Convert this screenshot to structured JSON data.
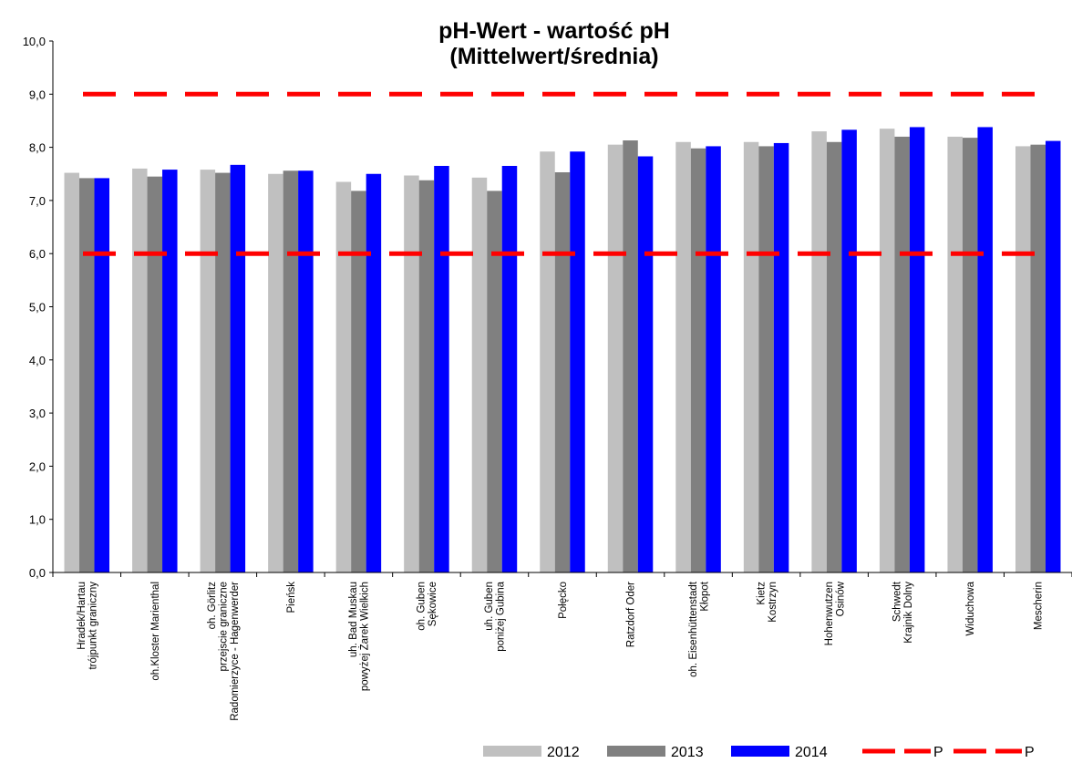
{
  "chart_data": {
    "type": "bar",
    "title_lines": [
      "pH-Wert - wartość pH",
      "(Mittelwert/średnia)"
    ],
    "xlabel": "",
    "ylabel": "",
    "ylim": [
      0,
      10
    ],
    "y_ticks": [
      "0,0",
      "1,0",
      "2,0",
      "3,0",
      "4,0",
      "5,0",
      "6,0",
      "7,0",
      "8,0",
      "9,0",
      "10,0"
    ],
    "grid": false,
    "legend_position": "bottom-right",
    "categories": [
      [
        "Hradek/Hartau",
        "trójpunkt graniczny"
      ],
      [
        "oh.Kloster Marienthal"
      ],
      [
        "oh. Görlitz",
        "przejscie graniczne",
        "Radomierzyce - Hagenwerder"
      ],
      [
        "Pieńsk"
      ],
      [
        "uh. Bad Muskau",
        "powyżej Żarek Wielkich"
      ],
      [
        "oh. Guben",
        "Sękowice"
      ],
      [
        "uh. Guben",
        "poniżej Gubina"
      ],
      [
        "Połęcko"
      ],
      [
        "Ratzdorf Oder"
      ],
      [
        "oh. Eisenhüttenstadt",
        "Kłopot"
      ],
      [
        "Kietz",
        "Kostrzyn"
      ],
      [
        "Hohenwutzen",
        "Osinów"
      ],
      [
        "Schwedt",
        "Krajnik Dolny"
      ],
      [
        "Widuchowa"
      ],
      [
        "Mescherin"
      ]
    ],
    "series": [
      {
        "name": "2012",
        "color": "#c0c0c0",
        "values": [
          7.52,
          7.6,
          7.58,
          7.5,
          7.35,
          7.47,
          7.43,
          7.92,
          8.05,
          8.1,
          8.1,
          8.3,
          8.35,
          8.2,
          8.02
        ]
      },
      {
        "name": "2013",
        "color": "#808080",
        "values": [
          7.42,
          7.45,
          7.52,
          7.56,
          7.18,
          7.38,
          7.18,
          7.53,
          8.13,
          7.98,
          8.02,
          8.1,
          8.2,
          8.18,
          8.05
        ]
      },
      {
        "name": "2014",
        "color": "#0000ff",
        "values": [
          7.42,
          7.58,
          7.67,
          7.56,
          7.5,
          7.65,
          7.65,
          7.92,
          7.83,
          8.02,
          8.08,
          8.33,
          8.38,
          8.38,
          8.12
        ]
      }
    ],
    "reference_lines": [
      {
        "name": "P",
        "value": 9.0,
        "color": "#ff0000",
        "style": "dashed"
      },
      {
        "name": "P",
        "value": 6.0,
        "color": "#ff0000",
        "style": "dashed"
      }
    ]
  }
}
